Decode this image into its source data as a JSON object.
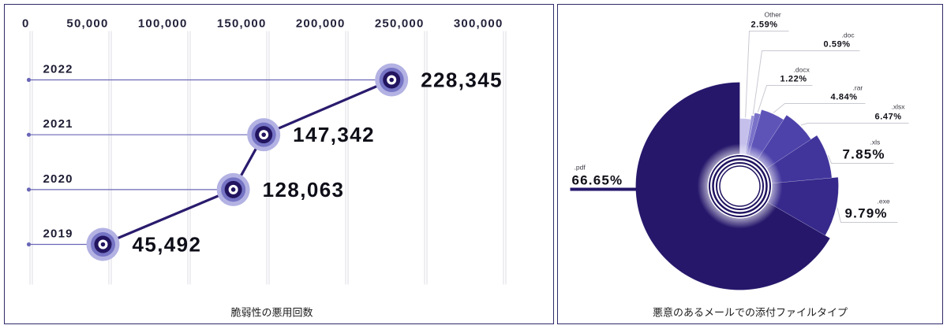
{
  "chart_data": [
    {
      "type": "line",
      "orientation": "horizontal",
      "title": "脆弱性の悪用回数",
      "categories": [
        "2022",
        "2021",
        "2020",
        "2019"
      ],
      "values": [
        228345,
        147342,
        128063,
        45492
      ],
      "value_labels": [
        "228,345",
        "147,342",
        "128,063",
        "45,492"
      ],
      "x_ticks": [
        0,
        50000,
        100000,
        150000,
        200000,
        250000,
        300000
      ],
      "x_tick_labels": [
        "0",
        "50,000",
        "100,000",
        "150,000",
        "200,000",
        "250,000",
        "300,000"
      ],
      "xlim": [
        0,
        300000
      ],
      "grid": true,
      "colors": {
        "trend_line": "#2a1b6d",
        "marker": "#22145f",
        "marker_ring": "#7674c4",
        "marker_halo": "#b3b2e3",
        "guide_line": "#6a67b6"
      }
    },
    {
      "type": "pie",
      "title": "悪意のあるメールでの添付ファイルタイプ",
      "slices": [
        {
          "label": ".pdf",
          "value": 66.65,
          "value_label": "66.65%",
          "color": "#26176b"
        },
        {
          "label": ".exe",
          "value": 9.79,
          "value_label": "9.79%",
          "color": "#36298b"
        },
        {
          "label": ".xls",
          "value": 7.85,
          "value_label": "7.85%",
          "color": "#41359c"
        },
        {
          "label": ".xlsx",
          "value": 6.47,
          "value_label": "6.47%",
          "color": "#4d42aa"
        },
        {
          "label": ".rar",
          "value": 4.84,
          "value_label": "4.84%",
          "color": "#5e54b8"
        },
        {
          "label": ".docx",
          "value": 1.22,
          "value_label": "1.22%",
          "color": "#7a72c9"
        },
        {
          "label": ".doc",
          "value": 0.59,
          "value_label": "0.59%",
          "color": "#9791d8"
        },
        {
          "label": "Other",
          "value": 2.59,
          "value_label": "2.59%",
          "color": "#c4c0eb"
        }
      ]
    }
  ]
}
